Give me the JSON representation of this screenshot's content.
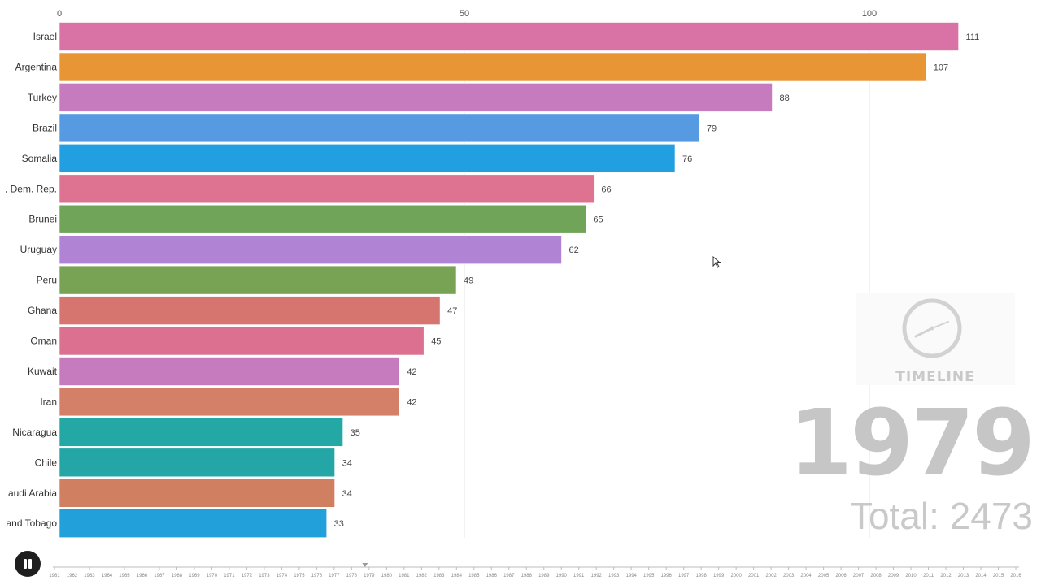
{
  "chart_data": {
    "type": "bar",
    "orientation": "horizontal",
    "title": "",
    "categories": [
      "Israel",
      "Argentina",
      "Turkey",
      "Brazil",
      "Somalia",
      ", Dem. Rep.",
      "Brunei",
      "Uruguay",
      "Peru",
      "Ghana",
      "Oman",
      "Kuwait",
      "Iran",
      "Nicaragua",
      "Chile",
      "audi Arabia",
      "and Tobago"
    ],
    "values": [
      111,
      107,
      88,
      79,
      76,
      66,
      65,
      62,
      49,
      47,
      45,
      42,
      42,
      35,
      34,
      34,
      33
    ],
    "value_labels": [
      "111",
      "107",
      "88",
      "79",
      "76",
      "66",
      "65",
      "62",
      "49",
      "47",
      "45",
      "42",
      "42",
      "35",
      "34",
      "34",
      "33"
    ],
    "colors": [
      "#d973a6",
      "#e89535",
      "#c67bbf",
      "#569be2",
      "#229fe1",
      "#dd7291",
      "#6fa459",
      "#b083d4",
      "#78a254",
      "#d67470",
      "#db7090",
      "#c67bbf",
      "#d48068",
      "#23a8a6",
      "#24a6a6",
      "#d08060",
      "#22a0da"
    ],
    "xticks": [
      0,
      50,
      100
    ],
    "xtick_labels": [
      "0",
      "50",
      "100"
    ],
    "xlim": [
      0,
      111
    ],
    "grid": true,
    "xlabel": "",
    "ylabel": ""
  },
  "year": "1979",
  "total_text": "Total: 2473",
  "logo": {
    "text": "TIMELINE",
    "icon": "clock-icon"
  },
  "controls": {
    "pause_icon": "pause-icon"
  },
  "timeline": {
    "years": [
      "1961",
      "1962",
      "1963",
      "1964",
      "1965",
      "1966",
      "1967",
      "1968",
      "1969",
      "1970",
      "1971",
      "1972",
      "1973",
      "1974",
      "1975",
      "1976",
      "1977",
      "1978",
      "1979",
      "1980",
      "1981",
      "1982",
      "1983",
      "1984",
      "1985",
      "1986",
      "1987",
      "1988",
      "1989",
      "1990",
      "1991",
      "1992",
      "1993",
      "1994",
      "1995",
      "1996",
      "1997",
      "1998",
      "1999",
      "2000",
      "2001",
      "2002",
      "2003",
      "2004",
      "2005",
      "2006",
      "2007",
      "2008",
      "2009",
      "2010",
      "2011",
      "2012",
      "2013",
      "2014",
      "2015",
      "2016"
    ],
    "current_year": "1979"
  }
}
